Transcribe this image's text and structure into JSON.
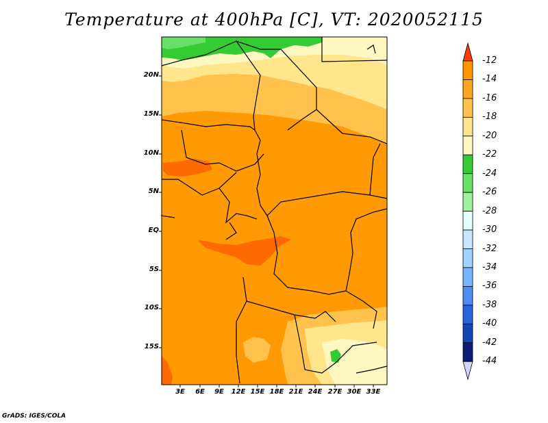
{
  "title": "Temperature at 400hPa [C], VT: 2020052115",
  "credit": "GrADS: IGES/COLA",
  "lat_labels": [
    "20N",
    "15N",
    "10N",
    "5N",
    "EQ",
    "5S",
    "10S",
    "15S"
  ],
  "lon_labels": [
    "3E",
    "6E",
    "9E",
    "12E",
    "15E",
    "18E",
    "21E",
    "24E",
    "27E",
    "30E",
    "33E"
  ],
  "colorbar": {
    "labels": [
      "-12",
      "-14",
      "-16",
      "-18",
      "-20",
      "-22",
      "-24",
      "-26",
      "-28",
      "-30",
      "-32",
      "-34",
      "-36",
      "-38",
      "-40",
      "-42",
      "-44"
    ],
    "colors": [
      "#ff6a00",
      "#ff9500",
      "#ffa51e",
      "#ffc34d",
      "#ffe58c",
      "#fff7c2",
      "#33cc33",
      "#66e066",
      "#a0f0a0",
      "#e6ffff",
      "#c8e6ff",
      "#a0d2ff",
      "#78b4ff",
      "#508cf0",
      "#2a64dc",
      "#1446b4",
      "#0a1e78"
    ],
    "top_arrow_color": "#ff3c00",
    "bottom_arrow_color": "#d2d2ff"
  }
}
